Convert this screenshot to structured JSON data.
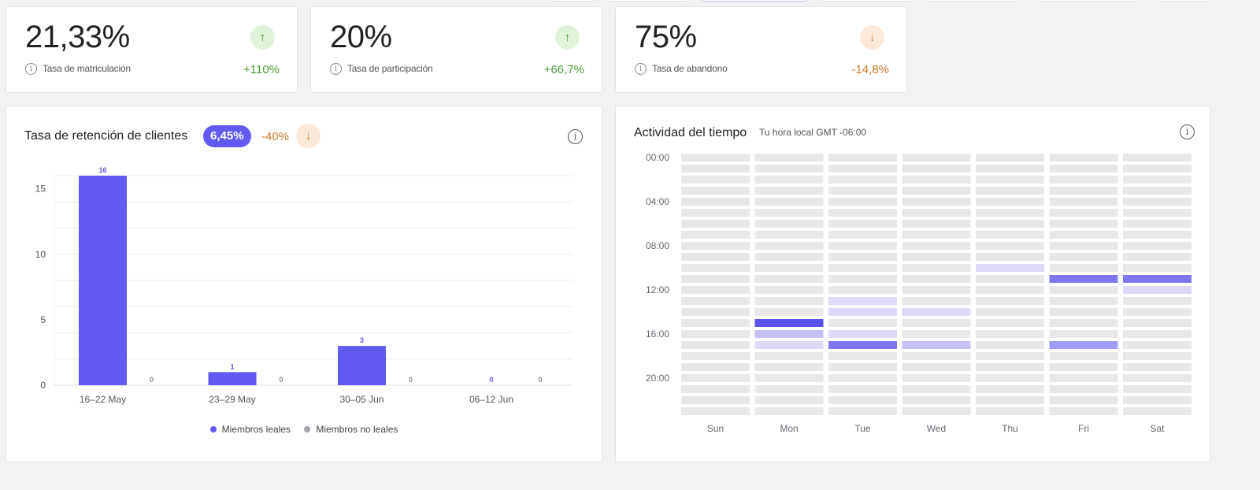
{
  "kpis": [
    {
      "value": "21,33%",
      "label": "Tasa de matriculación",
      "change": "+110%",
      "trend": "up",
      "arrow": "↑"
    },
    {
      "value": "20%",
      "label": "Tasa de participación",
      "change": "+66,7%",
      "trend": "up",
      "arrow": "↑"
    },
    {
      "value": "75%",
      "label": "Tasa de abandono",
      "change": "-14,8%",
      "trend": "down",
      "arrow": "↓"
    }
  ],
  "info_glyph": "i",
  "retention": {
    "title": "Tasa de retención de clientes",
    "badge": "6,45%",
    "change": "-40%",
    "arrow": "↓",
    "legend": {
      "loyal": "Miembros leales",
      "non_loyal": "Miembros no leales"
    }
  },
  "chart_data": {
    "type": "bar",
    "categories": [
      "16–22 May",
      "23–29 May",
      "30–05 Jun",
      "06–12 Jun"
    ],
    "series": [
      {
        "name": "Miembros leales",
        "values": [
          16,
          1,
          3,
          0
        ],
        "color": "#6259f0"
      },
      {
        "name": "Miembros no leales",
        "values": [
          0,
          0,
          0,
          0
        ],
        "color": "#a6a6ae"
      }
    ],
    "yticks": [
      0,
      5,
      10,
      15
    ],
    "ylim": [
      0,
      16
    ],
    "grid": true,
    "legend": "bottom-center"
  },
  "activity": {
    "title": "Actividad del tiempo",
    "subtitle": "Tu hora local GMT -06:00",
    "days": [
      "Sun",
      "Mon",
      "Tue",
      "Wed",
      "Thu",
      "Fri",
      "Sat"
    ],
    "hour_labels": [
      "00:00",
      "04:00",
      "08:00",
      "12:00",
      "16:00",
      "20:00"
    ],
    "highlights": [
      {
        "day": "Thu",
        "hour": 10,
        "level": "low"
      },
      {
        "day": "Fri",
        "hour": 11,
        "level": "high"
      },
      {
        "day": "Sat",
        "hour": 11,
        "level": "high"
      },
      {
        "day": "Sat",
        "hour": 12,
        "level": "low"
      },
      {
        "day": "Tue",
        "hour": 13,
        "level": "low"
      },
      {
        "day": "Tue",
        "hour": 14,
        "level": "low"
      },
      {
        "day": "Wed",
        "hour": 14,
        "level": "low"
      },
      {
        "day": "Mon",
        "hour": 15,
        "level": "max"
      },
      {
        "day": "Mon",
        "hour": 16,
        "level": "mid"
      },
      {
        "day": "Tue",
        "hour": 16,
        "level": "low"
      },
      {
        "day": "Mon",
        "hour": 17,
        "level": "low"
      },
      {
        "day": "Tue",
        "hour": 17,
        "level": "high"
      },
      {
        "day": "Wed",
        "hour": 17,
        "level": "mid"
      },
      {
        "day": "Fri",
        "hour": 17,
        "level": "midhigh"
      }
    ],
    "colors": {
      "empty": "#e8e8eb",
      "low": "#dcdaf7",
      "mid": "#c4c0f6",
      "midhigh": "#a29bf5",
      "high": "#7f76f0",
      "max": "#5b52eb"
    }
  }
}
